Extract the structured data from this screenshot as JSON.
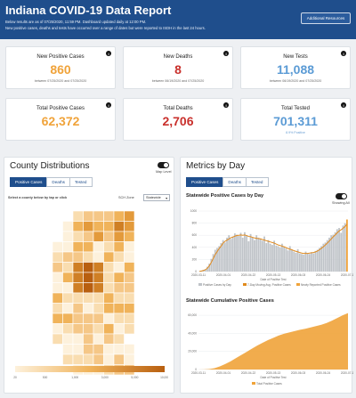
{
  "header": {
    "title": "Indiana COVID-19 Data Report",
    "line1": "Below results are as of 07/25/2020, 11:59 PM. Dashboard updated daily at 12:00 PM.",
    "line2": "New positive cases, deaths and tests have occurred over a range of dates but were reported to ISDH in the last 24 hours.",
    "resources_button": "Additional Resources"
  },
  "cards": [
    {
      "label": "New Positive Cases",
      "value": "860",
      "note": "between 07/25/2020 and 07/25/2020",
      "color": "#f0a33a"
    },
    {
      "label": "New Deaths",
      "value": "8",
      "note": "between 06/19/2020 and 07/25/2020",
      "color": "#c9302c"
    },
    {
      "label": "New Tests",
      "value": "11,088",
      "note": "between 06/19/2020 and 07/25/2020",
      "color": "#5b9bd5"
    },
    {
      "label": "Total Positive Cases",
      "value": "62,372",
      "note": "",
      "color": "#f0a33a"
    },
    {
      "label": "Total Deaths",
      "value": "2,706",
      "note": "",
      "color": "#c9302c"
    },
    {
      "label": "Total Tested",
      "value": "701,311",
      "note": "8.9% Positive",
      "color": "#5b9bd5"
    }
  ],
  "county": {
    "title": "County Distributions",
    "tabs": [
      "Positive Cases",
      "Deaths",
      "Tested"
    ],
    "toggle_label": "Map Level",
    "instruction": "Select a county below by tap or click",
    "geo_label": "SCH Zone",
    "geo_value": "Statewide",
    "legend_ticks": [
      "20",
      "500",
      "1,000",
      "3,000",
      "5,000",
      "10,000"
    ]
  },
  "metrics": {
    "title": "Metrics by Day",
    "tabs": [
      "Positive Cases",
      "Deaths",
      "Tested"
    ],
    "daily_title": "Statewide Positive Cases by Day",
    "daily_toggle_label": "Showing All",
    "daily_legend": [
      "Positive Cases by Day",
      "7-Day Moving Avg. Positive Cases",
      "Newly Reported Positive Cases"
    ],
    "cumulative_title": "Statewide Cumulative Positive Cases",
    "cumulative_legend": "Total Positive Cases",
    "x_axis_label": "Date of Positive Test"
  },
  "chart_data": [
    {
      "type": "bar",
      "title": "Statewide Positive Cases by Day",
      "xlabel": "Date of Positive Test",
      "ylabel": "",
      "x_ticks": [
        "2020-03-11",
        "2020-04-01",
        "2020-04-22",
        "2020-05-13",
        "2020-06-03",
        "2020-06-24",
        "2020-07-15"
      ],
      "y_ticks": [
        "0",
        "200",
        "400",
        "600",
        "800",
        "1000"
      ],
      "ylim": [
        0,
        1000
      ],
      "series": [
        {
          "name": "Positive Cases by Day",
          "values": [
            5,
            12,
            25,
            40,
            80,
            130,
            210,
            290,
            360,
            390,
            420,
            470,
            520,
            480,
            560,
            600,
            540,
            580,
            630,
            610,
            590,
            640,
            560,
            650,
            600,
            500,
            620,
            560,
            520,
            600,
            560,
            540,
            510,
            580,
            470,
            520,
            460,
            440,
            510,
            430,
            420,
            400,
            460,
            410,
            380,
            350,
            420,
            360,
            330,
            310,
            370,
            300,
            290,
            280,
            330,
            300,
            290,
            320,
            300,
            340,
            360,
            390,
            420,
            460,
            480,
            520,
            560,
            600,
            610,
            650,
            700,
            720,
            640,
            760,
            800,
            860
          ]
        },
        {
          "name": "7-Day Moving Avg. Positive Cases",
          "values": [
            4,
            9,
            18,
            30,
            55,
            95,
            150,
            215,
            280,
            330,
            380,
            420,
            470,
            500,
            520,
            540,
            560,
            570,
            585,
            595,
            600,
            605,
            600,
            605,
            595,
            580,
            575,
            565,
            555,
            550,
            545,
            540,
            530,
            520,
            510,
            500,
            490,
            480,
            470,
            455,
            440,
            430,
            420,
            410,
            395,
            380,
            370,
            360,
            345,
            335,
            325,
            315,
            305,
            300,
            300,
            300,
            305,
            310,
            315,
            325,
            340,
            360,
            385,
            410,
            440,
            470,
            505,
            540,
            575,
            605,
            640,
            670,
            690,
            715,
            745,
            780
          ]
        }
      ]
    },
    {
      "type": "area",
      "title": "Statewide Cumulative Positive Cases",
      "xlabel": "Date of Positive Test",
      "ylabel": "",
      "x_ticks": [
        "2020-03-11",
        "2020-04-01",
        "2020-04-22",
        "2020-05-13",
        "2020-06-03",
        "2020-06-24",
        "2020-07-15"
      ],
      "y_ticks": [
        "0",
        "20,000",
        "40,000",
        "60,000"
      ],
      "ylim": [
        0,
        65000
      ],
      "series": [
        {
          "name": "Total Positive Cases",
          "values": [
            0,
            100,
            500,
            1500,
            3500,
            6000,
            9000,
            12500,
            16000,
            19500,
            23000,
            26500,
            29500,
            32500,
            35000,
            37500,
            39500,
            41000,
            42500,
            44000,
            45000,
            46500,
            48000,
            49500,
            51500,
            54000,
            57000,
            60000,
            62372
          ]
        }
      ]
    }
  ]
}
